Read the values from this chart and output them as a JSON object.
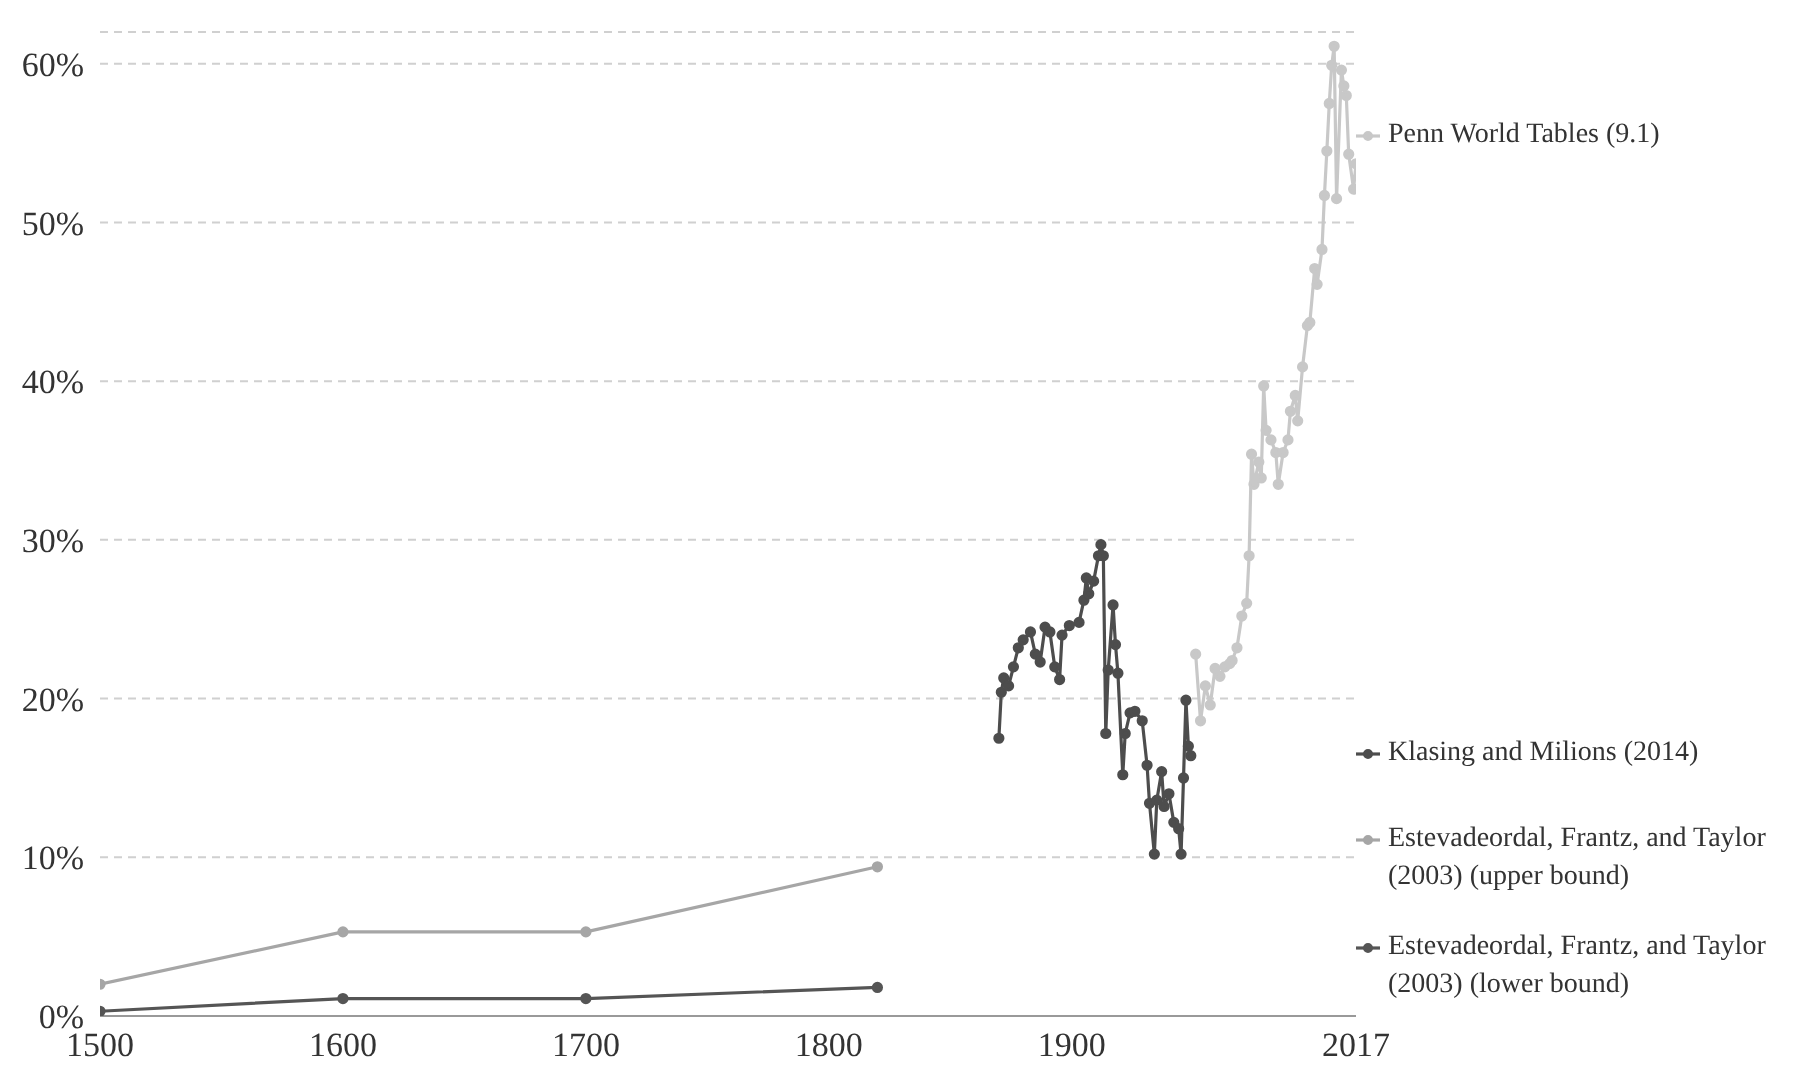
{
  "chart_data": {
    "type": "line",
    "legend": "right",
    "grid": "y",
    "marker": "circle",
    "line_style": "solid",
    "xlim": [
      1500,
      2017
    ],
    "xticks": [
      1500,
      1600,
      1700,
      1800,
      1900,
      2017
    ],
    "ylim": [
      0,
      62
    ],
    "yticks": [
      {
        "value": 0,
        "label": "0%"
      },
      {
        "value": 10,
        "label": "10%"
      },
      {
        "value": 20,
        "label": "20%"
      },
      {
        "value": 30,
        "label": "30%"
      },
      {
        "value": 40,
        "label": "40%"
      },
      {
        "value": 50,
        "label": "50%"
      },
      {
        "value": 60,
        "label": "60%"
      }
    ],
    "series": [
      {
        "name": "Penn World Tables (9.1)",
        "color": "#c8c8c8",
        "x": [
          1951,
          1953,
          1955,
          1957,
          1959,
          1961,
          1963,
          1965,
          1966,
          1968,
          1970,
          1972,
          1973,
          1974,
          1975,
          1977,
          1978,
          1979,
          1980,
          1982,
          1984,
          1985,
          1987,
          1989,
          1990,
          1992,
          1993,
          1995,
          1997,
          1998,
          2000,
          2001,
          2003,
          2004,
          2005,
          2006,
          2007,
          2008,
          2009,
          2011,
          2012,
          2013,
          2014,
          2016,
          2017
        ],
        "values": [
          22.8,
          18.6,
          20.8,
          19.6,
          21.9,
          21.4,
          22.0,
          22.2,
          22.4,
          23.2,
          25.2,
          26.0,
          29.0,
          35.4,
          33.5,
          34.9,
          33.9,
          39.7,
          36.9,
          36.3,
          35.5,
          33.5,
          35.5,
          36.3,
          38.1,
          39.1,
          37.5,
          40.9,
          43.5,
          43.7,
          47.1,
          46.1,
          48.3,
          51.7,
          54.5,
          57.5,
          59.9,
          61.1,
          51.5,
          59.6,
          58.6,
          58.0,
          54.3,
          52.1,
          53.7
        ]
      },
      {
        "name": "Klasing and Milions (2014)",
        "color": "#4d4d4d",
        "x": [
          1870,
          1871,
          1872,
          1874,
          1876,
          1878,
          1880,
          1883,
          1885,
          1887,
          1889,
          1891,
          1893,
          1895,
          1896,
          1899,
          1903,
          1905,
          1906,
          1907,
          1909,
          1911,
          1912,
          1913,
          1914,
          1915,
          1917,
          1918,
          1919,
          1921,
          1922,
          1924,
          1926,
          1929,
          1931,
          1932,
          1934,
          1935,
          1937,
          1938,
          1940,
          1942,
          1944,
          1945,
          1946,
          1947,
          1948,
          1949
        ],
        "values": [
          17.5,
          20.4,
          21.3,
          20.8,
          22.0,
          23.2,
          23.7,
          24.2,
          22.8,
          22.3,
          24.5,
          24.2,
          22.0,
          21.2,
          24.0,
          24.6,
          24.8,
          26.2,
          27.6,
          26.6,
          27.4,
          29.0,
          29.7,
          29.0,
          17.8,
          21.8,
          25.9,
          23.4,
          21.6,
          15.2,
          17.8,
          19.1,
          19.2,
          18.6,
          15.8,
          13.4,
          10.2,
          13.6,
          15.4,
          13.2,
          14.0,
          12.2,
          11.8,
          10.2,
          15.0,
          19.9,
          17.0,
          16.4
        ]
      },
      {
        "name": "Estevadeordal, Frantz, and Taylor (2003) (upper bound)",
        "color": "#a6a6a6",
        "x": [
          1500,
          1600,
          1700,
          1820
        ],
        "values": [
          2.0,
          5.3,
          5.3,
          9.4
        ]
      },
      {
        "name": "Estevadeordal, Frantz, and Taylor (2003) (lower bound)",
        "color": "#555555",
        "x": [
          1500,
          1600,
          1700,
          1820
        ],
        "values": [
          0.3,
          1.1,
          1.1,
          1.8
        ]
      }
    ]
  }
}
